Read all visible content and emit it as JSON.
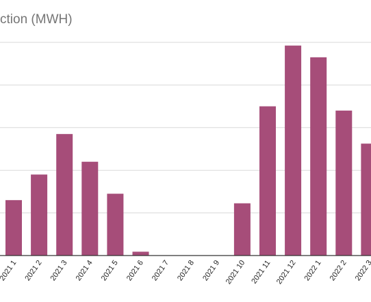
{
  "chart_data": {
    "type": "bar",
    "title": "ction (MWH)",
    "categories": [
      "2021 1",
      "2021 2",
      "2021 3",
      "2021 4",
      "2021 5",
      "2021 6",
      "2021 7",
      "2021 8",
      "2021 9",
      "2021 10",
      "2021 11",
      "2021 12",
      "2022 1",
      "2022 2",
      "2022 3"
    ],
    "values": [
      26,
      38,
      57,
      44,
      29,
      1.8,
      0,
      0,
      0,
      24.5,
      70,
      98.5,
      93,
      68,
      52.5
    ],
    "ylim": [
      0,
      100
    ],
    "grid": true,
    "bar_color": "#a64d79",
    "grid_color": "#d9d9d9",
    "axis_color": "#333333"
  }
}
